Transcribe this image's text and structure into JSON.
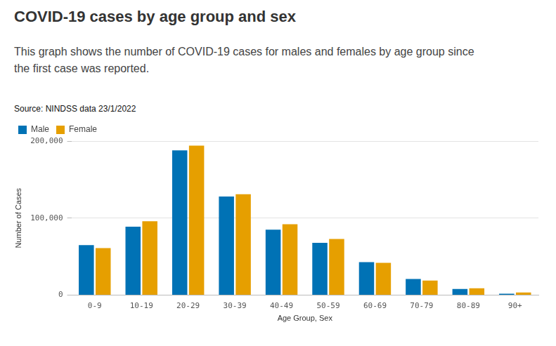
{
  "chart_data": {
    "type": "bar",
    "title": "COVID-19 cases by age group and sex",
    "subtitle": "This graph shows the number of COVID-19 cases for males and females by age group since the first case was reported.",
    "source": "Source: NINDSS data 23/1/2022",
    "x_label": "Age Group, Sex",
    "y_label": "Number of Cases",
    "categories": [
      "0-9",
      "10-19",
      "20-29",
      "30-39",
      "40-49",
      "50-59",
      "60-69",
      "70-79",
      "80-89",
      "90+"
    ],
    "series": [
      {
        "name": "Male",
        "color": "#0072b5",
        "values": [
          65000,
          89000,
          188000,
          128000,
          85000,
          68000,
          43000,
          21000,
          8000,
          2000
        ]
      },
      {
        "name": "Female",
        "color": "#e69f00",
        "values": [
          61000,
          96000,
          194000,
          131000,
          92000,
          73000,
          42000,
          19000,
          9000,
          3500
        ]
      }
    ],
    "ylim": [
      0,
      200000
    ],
    "yticks": [
      0,
      {
        "value": 100000,
        "label": "100,000"
      },
      {
        "value": 200000,
        "label": "200,000"
      }
    ],
    "grid": true,
    "legend": "top-left"
  }
}
